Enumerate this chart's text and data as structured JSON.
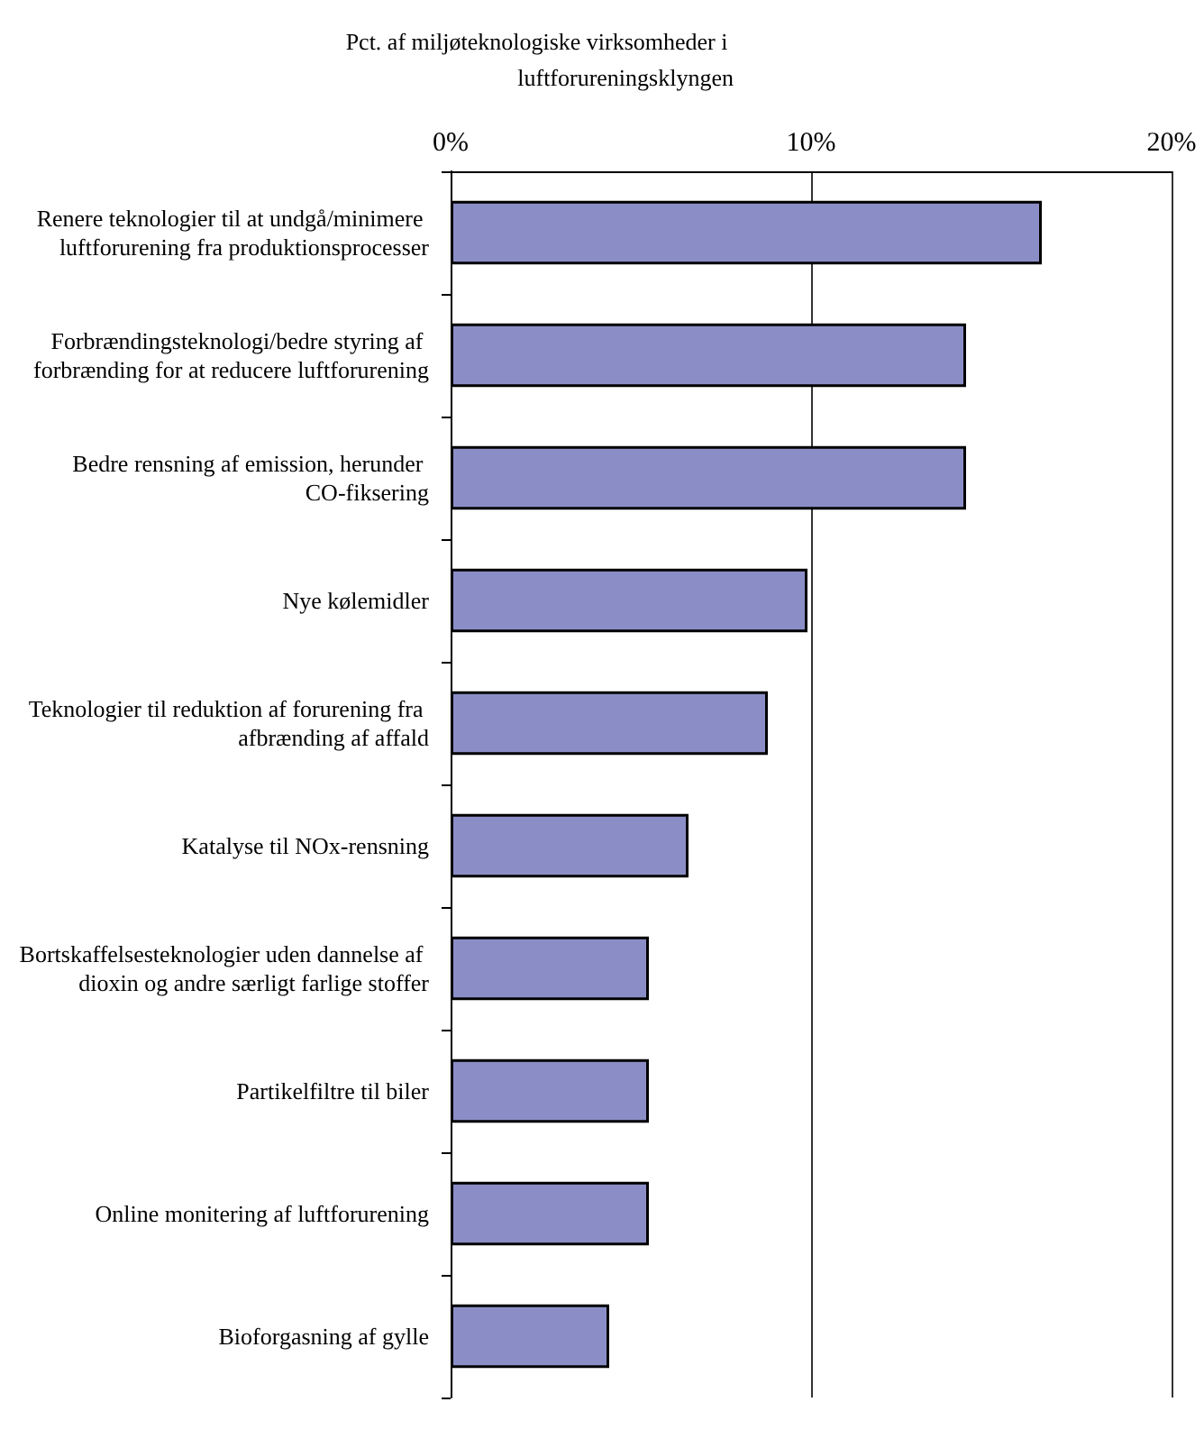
{
  "chart_data": {
    "type": "bar",
    "orientation": "horizontal",
    "xlabel": "Pct. af miljøteknologiske virksomheder i luftforureningsklyngen",
    "categories": [
      "Renere teknologier til at undgå/minimere luftforurening fra produktionsprocesser",
      "Forbrændingsteknologi/bedre styring af forbrænding for at reducere luftforurening",
      "Bedre rensning af emission, herunder CO-fiksering",
      "Nye kølemidler",
      "Teknologier til reduktion af forurening fra afbrænding af affald",
      "Katalyse til NOx-rensning",
      "Bortskaffelsesteknologier uden dannelse af dioxin og andre særligt farlige stoffer",
      "Partikelfiltre til biler",
      "Online monitering af luftforurening",
      "Bioforgasning af gylle"
    ],
    "values": [
      16.4,
      14.3,
      14.3,
      9.9,
      8.8,
      6.6,
      5.5,
      5.5,
      5.5,
      4.4
    ],
    "color": "#8b8ec6",
    "xlim": [
      0,
      20
    ],
    "xticks": [
      {
        "value": 0,
        "label": "0%"
      },
      {
        "value": 10,
        "label": "10%"
      },
      {
        "value": 20,
        "label": "20%"
      }
    ],
    "grid": "x"
  }
}
